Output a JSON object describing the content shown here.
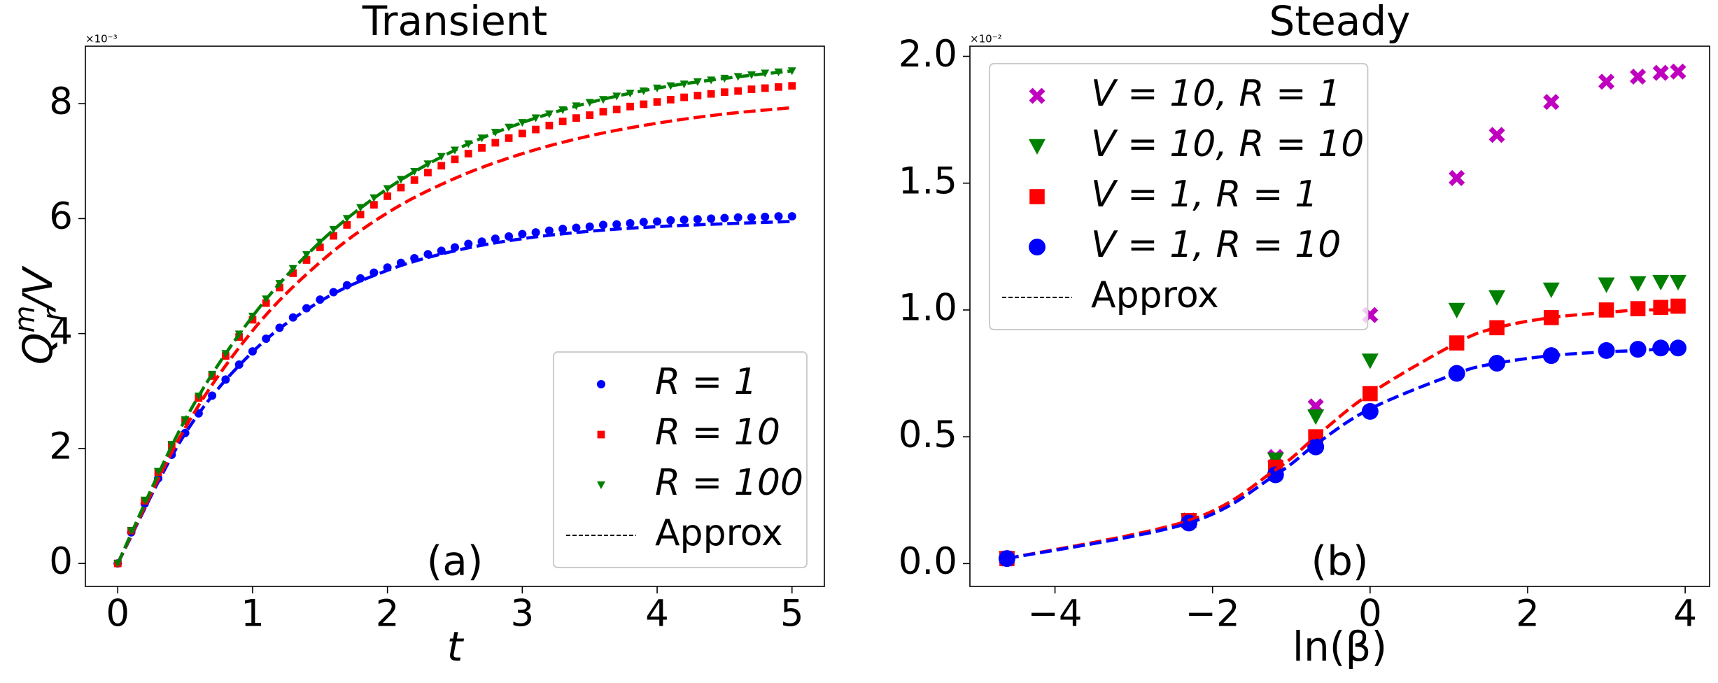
{
  "chart_data": [
    {
      "type": "scatter",
      "title": "Transient",
      "xlabel": "t",
      "ylabel": {
        "main": "Q",
        "subscript": "r",
        "superscript": "m",
        "tail": "/V"
      },
      "y_offset_label": "×10⁻³",
      "annotation": "(a)",
      "legend": "lower right",
      "xlim": [
        -0.24,
        5.24
      ],
      "xticks": [
        0,
        1,
        2,
        3,
        4,
        5
      ],
      "ylim": [
        -0.4,
        9.0
      ],
      "yticks": [
        0,
        2,
        4,
        6,
        8
      ],
      "x": [
        0,
        0.1,
        0.2,
        0.3,
        0.4,
        0.5,
        0.6,
        0.7,
        0.8,
        0.9,
        1,
        1.1,
        1.2,
        1.3,
        1.4,
        1.5,
        1.6,
        1.7,
        1.8,
        1.9,
        2,
        2.1,
        2.2,
        2.3,
        2.4,
        2.5,
        2.6,
        2.7,
        2.8,
        2.9,
        3,
        3.1,
        3.2,
        3.3,
        3.4,
        3.5,
        3.6,
        3.7,
        3.8,
        3.9,
        4,
        4.1,
        4.2,
        4.3,
        4.4,
        4.5,
        4.6,
        4.7,
        4.8,
        4.9,
        5
      ],
      "series": [
        {
          "name": "R = 1",
          "color": "#0000ff",
          "marker": "circle",
          "values": [
            0,
            0.54,
            1.04,
            1.48,
            1.89,
            2.27,
            2.61,
            2.92,
            3.2,
            3.46,
            3.69,
            3.91,
            4.1,
            4.28,
            4.44,
            4.59,
            4.72,
            4.84,
            4.96,
            5.06,
            5.15,
            5.23,
            5.31,
            5.38,
            5.44,
            5.5,
            5.56,
            5.6,
            5.65,
            5.69,
            5.73,
            5.76,
            5.79,
            5.82,
            5.84,
            5.86,
            5.89,
            5.9,
            5.92,
            5.94,
            5.95,
            5.97,
            5.98,
            5.99,
            6.0,
            6.01,
            6.02,
            6.02,
            6.03,
            6.04,
            6.04
          ]
        },
        {
          "name": "R = 10",
          "color": "#ff0000",
          "marker": "square",
          "values": [
            0,
            0.57,
            1.09,
            1.59,
            2.05,
            2.48,
            2.88,
            3.26,
            3.61,
            3.94,
            4.24,
            4.53,
            4.8,
            5.05,
            5.28,
            5.5,
            5.7,
            5.89,
            6.07,
            6.24,
            6.39,
            6.54,
            6.67,
            6.8,
            6.92,
            7.03,
            7.13,
            7.23,
            7.32,
            7.4,
            7.48,
            7.55,
            7.62,
            7.69,
            7.75,
            7.8,
            7.86,
            7.9,
            7.95,
            7.99,
            8.03,
            8.07,
            8.11,
            8.14,
            8.17,
            8.2,
            8.22,
            8.25,
            8.27,
            8.29,
            8.31
          ]
        },
        {
          "name": "R = 100",
          "color": "#008000",
          "marker": "triangle-down",
          "values": [
            0,
            0.57,
            1.1,
            1.6,
            2.07,
            2.5,
            2.91,
            3.29,
            3.65,
            3.99,
            4.3,
            4.6,
            4.87,
            5.13,
            5.37,
            5.59,
            5.81,
            6.0,
            6.19,
            6.36,
            6.52,
            6.68,
            6.82,
            6.95,
            7.08,
            7.19,
            7.3,
            7.4,
            7.5,
            7.59,
            7.67,
            7.75,
            7.82,
            7.89,
            7.96,
            8.02,
            8.07,
            8.13,
            8.18,
            8.22,
            8.27,
            8.31,
            8.34,
            8.38,
            8.41,
            8.44,
            8.47,
            8.5,
            8.53,
            8.55,
            8.57
          ]
        }
      ],
      "approx": {
        "name": "Approx",
        "x": [
          0,
          0.5,
          1,
          1.5,
          2,
          2.5,
          3,
          3.5,
          4,
          4.5,
          5
        ],
        "lines": [
          {
            "color": "#0000ff",
            "values": [
              0,
              2.26,
              3.68,
              4.56,
              5.1,
              5.44,
              5.65,
              5.78,
              5.86,
              5.91,
              5.95
            ]
          },
          {
            "color": "#ff0000",
            "values": [
              0,
              2.36,
              4.05,
              5.24,
              6.1,
              6.7,
              7.13,
              7.44,
              7.66,
              7.82,
              7.93
            ]
          },
          {
            "color": "#008000",
            "values": [
              0,
              2.5,
              4.3,
              5.59,
              6.52,
              7.19,
              7.67,
              8.02,
              8.27,
              8.44,
              8.57
            ]
          }
        ]
      }
    },
    {
      "type": "scatter",
      "title": "Steady",
      "xlabel": "ln(β)",
      "y_offset_label": "×10⁻²",
      "annotation": "(b)",
      "legend": "upper left",
      "xlim": [
        -5.08,
        4.31
      ],
      "xticks": [
        {
          "value": -4,
          "label": "−4"
        },
        {
          "value": -2,
          "label": "−2"
        },
        0,
        2,
        4
      ],
      "ylim": [
        -0.09,
        2.04
      ],
      "yticks": [
        {
          "value": 0,
          "label": "0.0"
        },
        {
          "value": 0.5,
          "label": "0.5"
        },
        {
          "value": 1,
          "label": "1.0"
        },
        {
          "value": 1.5,
          "label": "1.5"
        },
        {
          "value": 2,
          "label": "2.0"
        }
      ],
      "x": [
        -4.61,
        -2.3,
        -1.2,
        -0.69,
        0,
        1.1,
        1.61,
        2.3,
        3.0,
        3.4,
        3.69,
        3.91
      ],
      "series": [
        {
          "name": "V = 10, R = 1",
          "color": "#bf00bf",
          "marker": "x",
          "values": [
            0.02,
            0.17,
            0.42,
            0.62,
            0.98,
            1.52,
            1.69,
            1.82,
            1.9,
            1.92,
            1.935,
            1.94
          ]
        },
        {
          "name": "V = 10, R = 10",
          "color": "#008000",
          "marker": "triangle-down",
          "values": [
            0.02,
            0.17,
            0.41,
            0.58,
            0.8,
            1.0,
            1.05,
            1.08,
            1.1,
            1.105,
            1.11,
            1.11
          ]
        },
        {
          "name": "V = 1, R = 1",
          "color": "#ff0000",
          "marker": "square",
          "values": [
            0.02,
            0.17,
            0.38,
            0.5,
            0.67,
            0.87,
            0.93,
            0.97,
            1.0,
            1.005,
            1.01,
            1.015
          ]
        },
        {
          "name": "V = 1, R = 10",
          "color": "#0000ff",
          "marker": "circle",
          "values": [
            0.02,
            0.16,
            0.35,
            0.46,
            0.6,
            0.75,
            0.79,
            0.82,
            0.84,
            0.845,
            0.85,
            0.85
          ]
        }
      ],
      "approx": {
        "name": "Approx",
        "x": [
          -4.61,
          -2.3,
          -1.2,
          -0.69,
          0,
          1.1,
          1.61,
          2.3,
          3.0,
          3.4,
          3.69,
          3.91
        ],
        "lines": [
          {
            "color": "#ff0000",
            "values": [
              0.02,
              0.17,
              0.37,
              0.5,
              0.67,
              0.87,
              0.93,
              0.97,
              0.99,
              1.0,
              1.0,
              1.0
            ]
          },
          {
            "color": "#0000ff",
            "values": [
              0.02,
              0.16,
              0.35,
              0.47,
              0.61,
              0.75,
              0.79,
              0.82,
              0.835,
              0.84,
              0.845,
              0.845
            ]
          }
        ]
      }
    }
  ]
}
